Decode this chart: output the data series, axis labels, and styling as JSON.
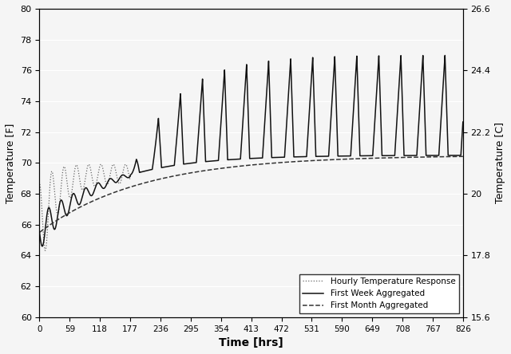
{
  "xlabel": "Time [hrs]",
  "ylabel_left": "Temperature [F]",
  "ylabel_right": "Temperature [C]",
  "ylim_left": [
    60,
    80
  ],
  "ylim_right": [
    15.6,
    26.6
  ],
  "yticks_left": [
    60,
    62,
    64,
    66,
    68,
    70,
    72,
    74,
    76,
    78,
    80
  ],
  "yticks_right": [
    15.6,
    17.8,
    20,
    22.2,
    24.4,
    26.6
  ],
  "xticks": [
    0,
    59,
    118,
    177,
    236,
    295,
    354,
    413,
    472,
    531,
    590,
    649,
    708,
    767,
    826
  ],
  "xlim": [
    0,
    826
  ],
  "legend_labels": [
    "Hourly Temperature Response",
    "First Week Aggregated",
    "First Month Aggregated"
  ],
  "bg_color": "#f5f5f5",
  "line_color": "#111111"
}
